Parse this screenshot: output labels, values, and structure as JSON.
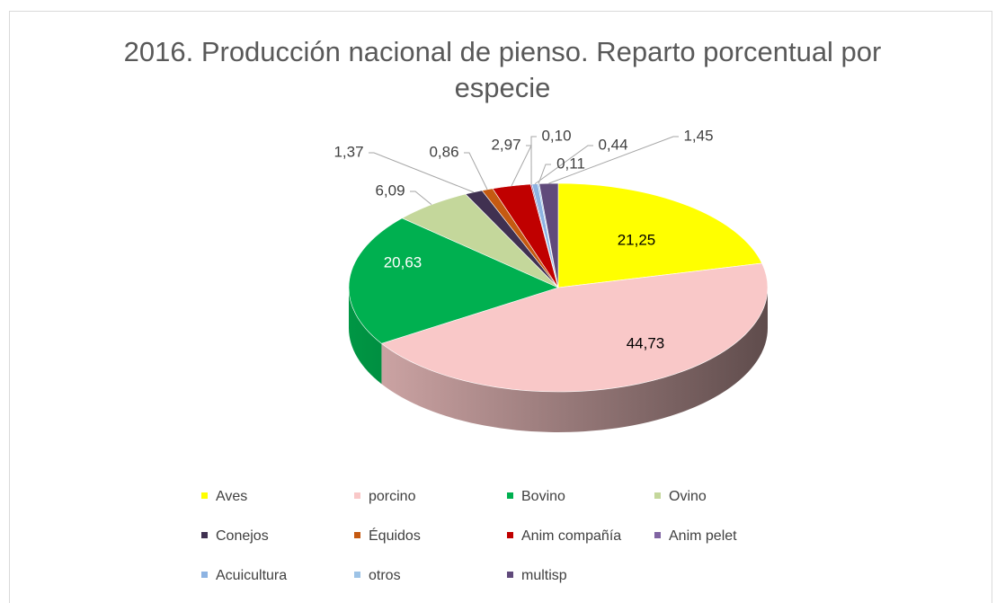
{
  "chart_data": {
    "type": "pie",
    "title": "2016. Producción nacional de pienso. Reparto porcentual por especie",
    "categories": [
      "Aves",
      "porcino",
      "Bovino",
      "Ovino",
      "Conejos",
      "Équidos",
      "Anim compañía",
      "Anim pelet",
      "Acuicultura",
      "otros",
      "multisp"
    ],
    "values": [
      21.25,
      44.73,
      20.63,
      6.09,
      1.37,
      0.86,
      2.97,
      0.1,
      0.44,
      0.11,
      1.45
    ],
    "value_labels": [
      "21,25",
      "44,73",
      "20,63",
      "6,09",
      "1,37",
      "0,86",
      "2,97",
      "0,10",
      "0,44",
      "0,11",
      "1,45"
    ],
    "colors": [
      "#ffff00",
      "#f9c8c8",
      "#00b050",
      "#c4d79b",
      "#403151",
      "#c55a11",
      "#c00000",
      "#8064a2",
      "#8db3e2",
      "#9dc3e6",
      "#604a7b"
    ],
    "legend": "bottom"
  }
}
